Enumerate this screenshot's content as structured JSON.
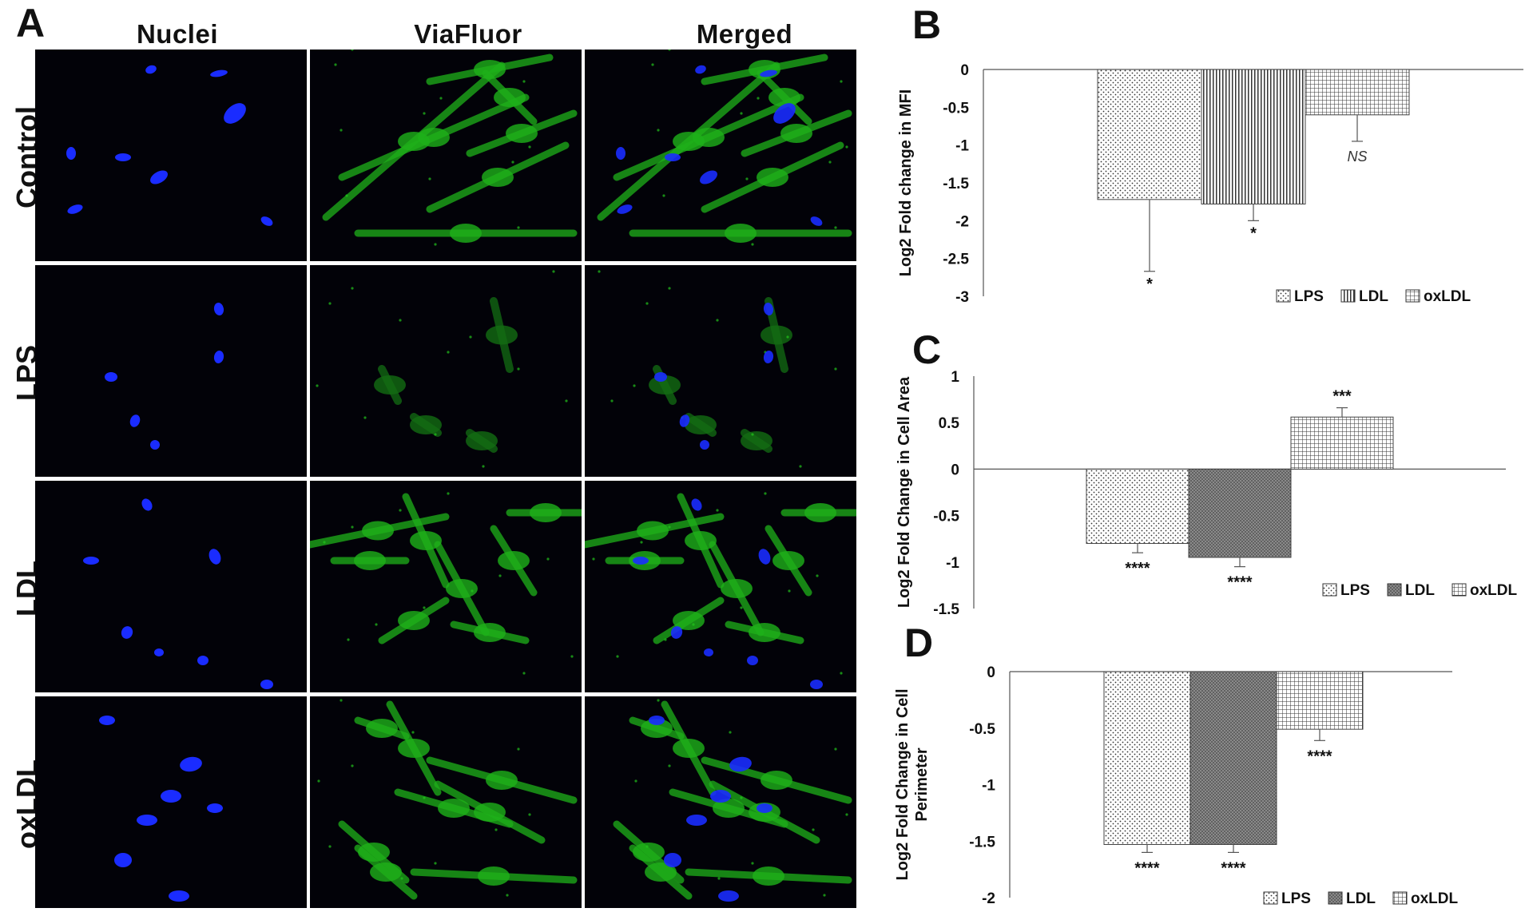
{
  "panel_a": {
    "letter": "A",
    "columns": [
      "Nuclei",
      "ViaFluor",
      "Merged"
    ],
    "rows": [
      "Control",
      "LPS",
      "LDL",
      "oxLDL"
    ]
  },
  "colors": {
    "nuclei": "#1a2cff",
    "viafluor": "#22c41c",
    "background": "#020208"
  },
  "chart_data": [
    {
      "type": "bar",
      "panel": "B",
      "title": "",
      "categories": [
        "LPS",
        "LDL",
        "oxLDL"
      ],
      "values": [
        -1.72,
        -1.78,
        -0.6
      ],
      "errors": [
        0.95,
        0.22,
        0.35
      ],
      "significance": [
        "*",
        "*",
        "NS"
      ],
      "ylabel": "Log2 Fold change in MFI",
      "xlabel": "",
      "ylim": [
        -3,
        0
      ],
      "yticks": [
        "0",
        "-0.5",
        "-1",
        "-1.5",
        "-2",
        "-2.5",
        "-3"
      ],
      "legend": [
        "LPS",
        "LDL",
        "oxLDL"
      ],
      "legend_position": "bottom-right"
    },
    {
      "type": "bar",
      "panel": "C",
      "title": "",
      "categories": [
        "LPS",
        "LDL",
        "oxLDL"
      ],
      "values": [
        -0.8,
        -0.95,
        0.56
      ],
      "errors": [
        0.1,
        0.1,
        0.1
      ],
      "significance": [
        "****",
        "****",
        "***"
      ],
      "ylabel": "Log2 Fold Change in Cell Area",
      "xlabel": "",
      "ylim": [
        -1.5,
        1
      ],
      "yticks": [
        "1",
        "0.5",
        "0",
        "-0.5",
        "-1",
        "-1.5"
      ],
      "legend": [
        "LPS",
        "LDL",
        "oxLDL"
      ],
      "legend_position": "bottom-right"
    },
    {
      "type": "bar",
      "panel": "D",
      "title": "",
      "categories": [
        "LPS",
        "LDL",
        "oxLDL"
      ],
      "values": [
        -1.53,
        -1.53,
        -0.51
      ],
      "errors": [
        0.07,
        0.07,
        0.1
      ],
      "significance": [
        "****",
        "****",
        "****"
      ],
      "ylabel": "Log2 Fold Change in Cell Perimeter",
      "ylabel_lines": [
        "Log2 Fold Change in Cell",
        "Perimeter"
      ],
      "xlabel": "",
      "ylim": [
        -2,
        0
      ],
      "yticks": [
        "0",
        "-0.5",
        "-1",
        "-1.5",
        "-2"
      ],
      "legend": [
        "LPS",
        "LDL",
        "oxLDL"
      ],
      "legend_position": "bottom-right"
    }
  ]
}
